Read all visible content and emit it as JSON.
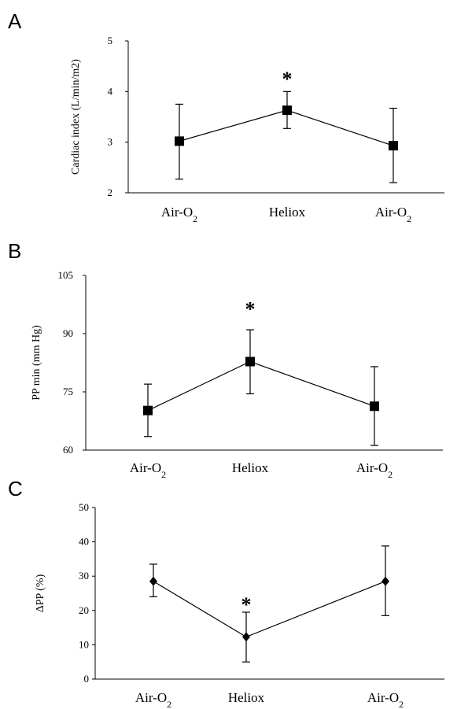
{
  "chart_data": [
    {
      "type": "line",
      "panel": "A",
      "ylabel": "Cardiac index (L/min/m2)",
      "ylim": [
        2,
        5
      ],
      "yticks": [
        2,
        3,
        4,
        5
      ],
      "categories": [
        {
          "base": "Air-O",
          "sub": "2"
        },
        {
          "base": "Heliox",
          "sub": ""
        },
        {
          "base": "Air-O",
          "sub": "2"
        }
      ],
      "series": [
        {
          "values": [
            3.02,
            3.63,
            2.93
          ],
          "err_low": [
            2.27,
            3.27,
            2.2
          ],
          "err_high": [
            3.75,
            4.0,
            3.67
          ],
          "marker": "square"
        }
      ],
      "annotations": [
        {
          "text": "*",
          "category_index": 1,
          "y": 4.3
        }
      ],
      "grid": false
    },
    {
      "type": "line",
      "panel": "B",
      "ylabel": "PP min (mm Hg)",
      "ylim": [
        60,
        105
      ],
      "yticks": [
        60,
        75,
        90,
        105
      ],
      "categories": [
        {
          "base": "Air-O",
          "sub": "2"
        },
        {
          "base": "Heliox",
          "sub": ""
        },
        {
          "base": "Air-O",
          "sub": "2"
        }
      ],
      "series": [
        {
          "values": [
            70.2,
            82.8,
            71.3
          ],
          "err_low": [
            63.5,
            74.5,
            61.2
          ],
          "err_high": [
            77.0,
            91.0,
            81.5
          ],
          "marker": "square"
        }
      ],
      "annotations": [
        {
          "text": "*",
          "category_index": 1,
          "y": 97
        }
      ],
      "grid": false
    },
    {
      "type": "line",
      "panel": "C",
      "ylabel": "ΔPP (%)",
      "ylim": [
        0,
        50
      ],
      "yticks": [
        0,
        10,
        20,
        30,
        40,
        50
      ],
      "categories": [
        {
          "base": "Air-O",
          "sub": "2"
        },
        {
          "base": "Heliox",
          "sub": ""
        },
        {
          "base": "Air-O",
          "sub": "2"
        }
      ],
      "series": [
        {
          "values": [
            28.5,
            12.3,
            28.5
          ],
          "err_low": [
            24.0,
            5.0,
            18.5
          ],
          "err_high": [
            33.5,
            19.5,
            38.8
          ],
          "marker": "diamond"
        }
      ],
      "annotations": [
        {
          "text": "*",
          "category_index": 1,
          "y": 22.5
        }
      ],
      "grid": false
    }
  ]
}
